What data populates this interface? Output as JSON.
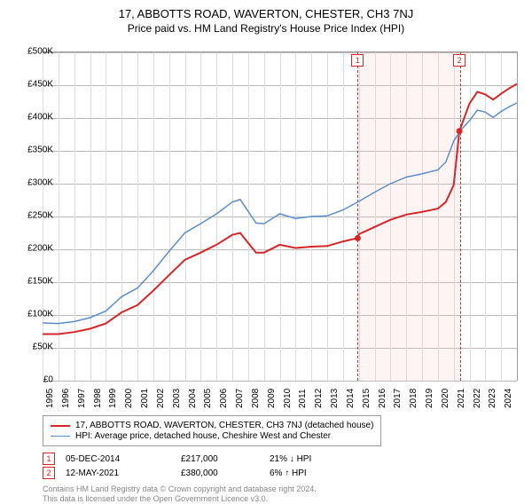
{
  "title": "17, ABBOTTS ROAD, WAVERTON, CHESTER, CH3 7NJ",
  "subtitle": "Price paid vs. HM Land Registry's House Price Index (HPI)",
  "chart": {
    "type": "line",
    "background_color": "#ffffff",
    "grid_color": "#bbbbbb",
    "axis_color": "#999999",
    "xlim": [
      1995,
      2025
    ],
    "ylim": [
      0,
      500000
    ],
    "ytick_step": 50000,
    "yticks": [
      "£0",
      "£50K",
      "£100K",
      "£150K",
      "£200K",
      "£250K",
      "£300K",
      "£350K",
      "£400K",
      "£450K",
      "£500K"
    ],
    "xticks": [
      "1995",
      "1996",
      "1997",
      "1998",
      "1999",
      "2000",
      "2001",
      "2002",
      "2003",
      "2004",
      "2005",
      "2006",
      "2007",
      "2008",
      "2009",
      "2010",
      "2011",
      "2012",
      "2013",
      "2014",
      "2015",
      "2016",
      "2017",
      "2018",
      "2019",
      "2020",
      "2021",
      "2022",
      "2023",
      "2024"
    ],
    "ytick_fontsize": 10,
    "xtick_fontsize": 10,
    "shaded_region": {
      "x_start": 2014.93,
      "x_end": 2021.36,
      "color": "rgba(255,180,180,0.15)",
      "border_color": "#d62728"
    },
    "markers": [
      {
        "label": "1",
        "x": 2014.93,
        "y_top": true
      },
      {
        "label": "2",
        "x": 2021.36,
        "y_top": true
      }
    ],
    "series": [
      {
        "name": "property",
        "label": "17, ABBOTTS ROAD, WAVERTON, CHESTER, CH3 7NJ (detached house)",
        "color": "#d62728",
        "line_width": 2,
        "data": [
          [
            1995,
            71000
          ],
          [
            1996,
            71000
          ],
          [
            1997,
            74000
          ],
          [
            1998,
            79000
          ],
          [
            1999,
            87000
          ],
          [
            2000,
            104000
          ],
          [
            2001,
            115000
          ],
          [
            2002,
            137000
          ],
          [
            2003,
            161000
          ],
          [
            2004,
            184000
          ],
          [
            2005,
            195000
          ],
          [
            2006,
            207000
          ],
          [
            2007,
            222000
          ],
          [
            2007.5,
            225000
          ],
          [
            2008,
            210000
          ],
          [
            2008.5,
            195000
          ],
          [
            2009,
            195000
          ],
          [
            2010,
            207000
          ],
          [
            2011,
            202000
          ],
          [
            2012,
            204000
          ],
          [
            2013,
            205000
          ],
          [
            2014,
            212000
          ],
          [
            2014.93,
            217000
          ],
          [
            2015,
            223000
          ],
          [
            2016,
            234000
          ],
          [
            2017,
            245000
          ],
          [
            2018,
            253000
          ],
          [
            2019,
            257000
          ],
          [
            2020,
            262000
          ],
          [
            2020.5,
            272000
          ],
          [
            2021,
            298000
          ],
          [
            2021.36,
            380000
          ],
          [
            2022,
            422000
          ],
          [
            2022.5,
            440000
          ],
          [
            2023,
            436000
          ],
          [
            2023.5,
            428000
          ],
          [
            2024,
            437000
          ],
          [
            2024.5,
            445000
          ],
          [
            2025,
            452000
          ]
        ]
      },
      {
        "name": "hpi",
        "label": "HPI: Average price, detached house, Cheshire West and Chester",
        "color": "#5b8ec9",
        "line_width": 1.5,
        "data": [
          [
            1995,
            88000
          ],
          [
            1996,
            87000
          ],
          [
            1997,
            90000
          ],
          [
            1998,
            96000
          ],
          [
            1999,
            106000
          ],
          [
            2000,
            128000
          ],
          [
            2001,
            141000
          ],
          [
            2002,
            167000
          ],
          [
            2003,
            197000
          ],
          [
            2004,
            225000
          ],
          [
            2005,
            239000
          ],
          [
            2006,
            254000
          ],
          [
            2007,
            272000
          ],
          [
            2007.5,
            276000
          ],
          [
            2008,
            258000
          ],
          [
            2008.5,
            240000
          ],
          [
            2009,
            239000
          ],
          [
            2010,
            254000
          ],
          [
            2011,
            247000
          ],
          [
            2012,
            250000
          ],
          [
            2013,
            251000
          ],
          [
            2014,
            260000
          ],
          [
            2015,
            273000
          ],
          [
            2016,
            287000
          ],
          [
            2017,
            300000
          ],
          [
            2018,
            310000
          ],
          [
            2019,
            315000
          ],
          [
            2020,
            321000
          ],
          [
            2020.5,
            333000
          ],
          [
            2021,
            365000
          ],
          [
            2021.5,
            383000
          ],
          [
            2022,
            396000
          ],
          [
            2022.5,
            412000
          ],
          [
            2023,
            409000
          ],
          [
            2023.5,
            401000
          ],
          [
            2024,
            410000
          ],
          [
            2024.5,
            417000
          ],
          [
            2025,
            423000
          ]
        ]
      }
    ]
  },
  "legend": {
    "border_color": "#999999",
    "items": [
      {
        "color": "#d62728",
        "label": "17, ABBOTTS ROAD, WAVERTON, CHESTER, CH3 7NJ (detached house)"
      },
      {
        "color": "#5b8ec9",
        "label": "HPI: Average price, detached house, Cheshire West and Chester"
      }
    ]
  },
  "transactions": [
    {
      "marker": "1",
      "date": "05-DEC-2014",
      "price": "£217,000",
      "delta": "21% ↓ HPI"
    },
    {
      "marker": "2",
      "date": "12-MAY-2021",
      "price": "£380,000",
      "delta": "6% ↑ HPI"
    }
  ],
  "footer": {
    "line1": "Contains HM Land Registry data © Crown copyright and database right 2024.",
    "line2": "This data is licensed under the Open Government Licence v3.0."
  }
}
